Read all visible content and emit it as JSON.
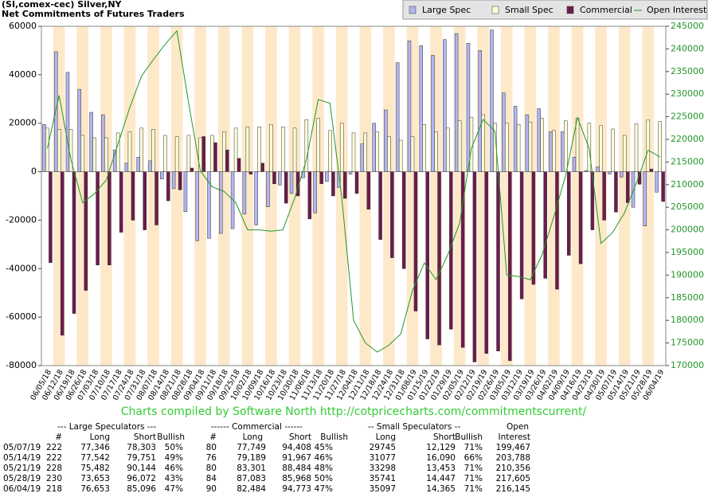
{
  "chart_data": {
    "type": "bar",
    "title": "(SI,comex-cec) Silver,NY",
    "subtitle": "Net Commitments of Futures Traders",
    "footer": "Charts compiled by Software North  http://cotpricecharts.com/commitmentscurrent/",
    "categories": [
      "06/05/18",
      "06/12/18",
      "06/19/18",
      "06/26/18",
      "07/03/18",
      "07/10/18",
      "07/17/18",
      "07/24/18",
      "07/31/18",
      "08/07/18",
      "08/14/18",
      "08/21/18",
      "08/28/18",
      "09/04/18",
      "09/11/18",
      "09/18/18",
      "09/25/18",
      "10/02/18",
      "10/09/18",
      "10/16/18",
      "10/23/18",
      "10/30/18",
      "11/06/18",
      "11/13/18",
      "11/20/18",
      "11/27/18",
      "12/04/18",
      "12/11/18",
      "12/18/18",
      "12/24/18",
      "12/31/18",
      "01/08/19",
      "01/15/19",
      "01/22/19",
      "01/29/19",
      "02/05/19",
      "02/12/19",
      "02/19/19",
      "02/26/19",
      "03/05/19",
      "03/12/19",
      "03/19/19",
      "03/26/19",
      "04/02/19",
      "04/09/19",
      "04/16/19",
      "04/23/19",
      "04/30/19",
      "05/07/19",
      "05/14/19",
      "05/21/19",
      "05/28/19",
      "06/04/19"
    ],
    "series": [
      {
        "name": "Large Spec",
        "type": "bar",
        "color": "#b4b4f0",
        "values": [
          19500,
          49500,
          41000,
          34000,
          24500,
          23500,
          9000,
          3500,
          6000,
          4500,
          -3000,
          -7000,
          -16500,
          -28500,
          -27500,
          -25500,
          -23500,
          -17500,
          -22000,
          -14500,
          -5500,
          -9000,
          -2500,
          -17000,
          -4000,
          -6500,
          -1000,
          11500,
          20000,
          25500,
          45000,
          54000,
          52000,
          48000,
          54500,
          57000,
          53000,
          50000,
          58500,
          32500,
          27000,
          23500,
          26000,
          16500,
          16500,
          6000,
          500,
          2000,
          -957,
          -2209,
          -14662,
          -22419,
          -8443
        ]
      },
      {
        "name": "Small Spec",
        "type": "bar",
        "color": "#ffffd6",
        "values": [
          18000,
          17500,
          17500,
          15000,
          14000,
          14000,
          16000,
          16500,
          18000,
          17500,
          15000,
          14500,
          15000,
          14000,
          15000,
          16500,
          18000,
          18500,
          18500,
          19500,
          18500,
          18000,
          21500,
          22000,
          17000,
          20000,
          16000,
          16000,
          16500,
          14500,
          13000,
          14500,
          19500,
          16500,
          18000,
          21000,
          22500,
          23500,
          20000,
          20000,
          19500,
          20500,
          22000,
          17000,
          21000,
          22000,
          20000,
          19000,
          17616,
          14987,
          19845,
          21294,
          20732
        ]
      },
      {
        "name": "Commercial",
        "type": "bar",
        "color": "#6e1a4c",
        "values": [
          -37500,
          -67500,
          -58500,
          -49000,
          -38500,
          -38500,
          -25000,
          -20000,
          -24000,
          -22000,
          -12000,
          -7500,
          1500,
          14500,
          12000,
          9000,
          5500,
          -1000,
          3500,
          -5000,
          -13000,
          -10000,
          -19500,
          -5000,
          -10000,
          -11000,
          -9000,
          -15500,
          -28000,
          -35500,
          -40000,
          -57500,
          -69000,
          -71500,
          -65000,
          -72500,
          -78500,
          -75000,
          -74000,
          -78000,
          -52500,
          -46500,
          -44000,
          -48500,
          -34500,
          -38000,
          -24000,
          -20000,
          -16659,
          -12778,
          -5183,
          1115,
          -12289
        ]
      },
      {
        "name": "Open Interest",
        "type": "line",
        "axis": "y2",
        "color": "#22962a",
        "values": [
          218000,
          229700,
          215600,
          206000,
          208000,
          211000,
          219000,
          227000,
          234000,
          237600,
          241000,
          244000,
          228000,
          213000,
          209500,
          208500,
          206000,
          200000,
          200000,
          199700,
          200000,
          207000,
          215600,
          228800,
          228000,
          207000,
          180000,
          175000,
          173000,
          174500,
          177000,
          186600,
          192700,
          189000,
          194500,
          201500,
          218000,
          224400,
          221800,
          190000,
          189700,
          189000,
          194500,
          203000,
          212000,
          224800,
          218000,
          197000,
          199467,
          203788,
          210356,
          217605,
          216145
        ]
      }
    ],
    "ylim": [
      -80000,
      60000
    ],
    "yticks": [
      -80000,
      -60000,
      -40000,
      -20000,
      0,
      20000,
      40000,
      60000
    ],
    "y2lim": [
      170000,
      245000
    ],
    "y2ticks": [
      170000,
      175000,
      180000,
      185000,
      190000,
      195000,
      200000,
      205000,
      210000,
      215000,
      220000,
      225000,
      230000,
      235000,
      240000,
      245000
    ],
    "legend": "top-right"
  },
  "table": {
    "header1": [
      "--- Large Speculators ---",
      "------ Commercial ------",
      "-- Small Speculators --",
      "Open"
    ],
    "header2": [
      "#",
      "Long",
      "Short",
      "Bullish",
      "#",
      "Long",
      "Short",
      "Bullish",
      "Long",
      "Short",
      "Bullish",
      "Interest"
    ],
    "rows": [
      [
        "05/07/19",
        "222",
        "77,346",
        "78,303",
        "50%",
        "80",
        "77,749",
        "94,408",
        "45%",
        "29745",
        "12,129",
        "71%",
        "199,467"
      ],
      [
        "05/14/19",
        "222",
        "77,542",
        "79,751",
        "49%",
        "76",
        "79,189",
        "91,967",
        "46%",
        "31077",
        "16,090",
        "66%",
        "203,788"
      ],
      [
        "05/21/19",
        "228",
        "75,482",
        "90,144",
        "46%",
        "80",
        "83,301",
        "88,484",
        "48%",
        "33298",
        "13,453",
        "71%",
        "210,356"
      ],
      [
        "05/28/19",
        "230",
        "73,653",
        "96,072",
        "43%",
        "84",
        "87,083",
        "85,968",
        "50%",
        "35741",
        "14,447",
        "71%",
        "217,605"
      ],
      [
        "06/04/19",
        "218",
        "76,653",
        "85,096",
        "47%",
        "90",
        "82,484",
        "94,773",
        "47%",
        "35097",
        "14,365",
        "71%",
        "216,145"
      ]
    ]
  }
}
